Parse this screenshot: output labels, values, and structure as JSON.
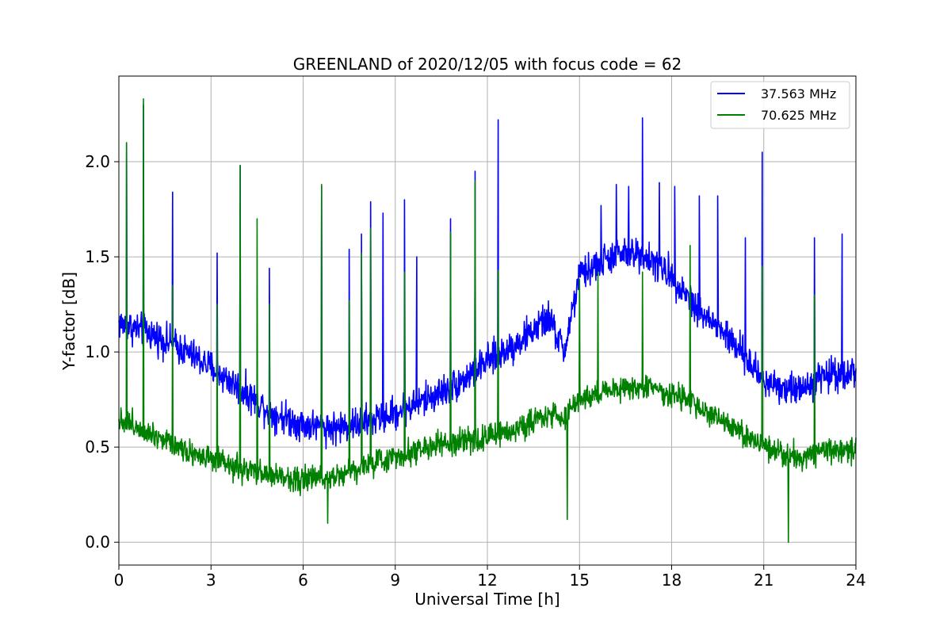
{
  "chart_data": {
    "type": "line",
    "title": "GREENLAND of 2020/12/05 with focus code = 62",
    "xlabel": "Universal Time [h]",
    "ylabel": "Y-factor [dB]",
    "xlim": [
      0,
      24
    ],
    "ylim": [
      -0.12,
      2.45
    ],
    "xticks": [
      0,
      3,
      6,
      9,
      12,
      15,
      18,
      21,
      24
    ],
    "yticks": [
      0.0,
      0.5,
      1.0,
      1.5,
      2.0
    ],
    "xtick_labels": [
      "0",
      "3",
      "6",
      "9",
      "12",
      "15",
      "18",
      "21",
      "24"
    ],
    "ytick_labels": [
      "0.0",
      "0.5",
      "1.0",
      "1.5",
      "2.0"
    ],
    "grid": true,
    "legend_position": "top-right",
    "series": [
      {
        "name": "37.563 MHz",
        "label": "37.563 MHz",
        "color": "#0000ff",
        "baseline": {
          "x": [
            0,
            1,
            2,
            3,
            4,
            5,
            6,
            7,
            8,
            9,
            10,
            11,
            12,
            13,
            14,
            14.5,
            15,
            16,
            17,
            18,
            19,
            20,
            21,
            22,
            23,
            24
          ],
          "y": [
            1.15,
            1.1,
            1.02,
            0.92,
            0.8,
            0.68,
            0.62,
            0.6,
            0.63,
            0.68,
            0.75,
            0.83,
            0.95,
            1.05,
            1.18,
            1.0,
            1.4,
            1.5,
            1.52,
            1.4,
            1.2,
            1.05,
            0.85,
            0.8,
            0.88,
            0.9
          ]
        },
        "noise_amplitude": 0.13,
        "spikes": [
          {
            "x": 0.25,
            "y": 2.1
          },
          {
            "x": 0.8,
            "y": 2.3
          },
          {
            "x": 1.75,
            "y": 1.84
          },
          {
            "x": 3.2,
            "y": 1.52
          },
          {
            "x": 3.95,
            "y": 1.98
          },
          {
            "x": 4.9,
            "y": 1.44
          },
          {
            "x": 6.6,
            "y": 1.87
          },
          {
            "x": 7.5,
            "y": 1.54
          },
          {
            "x": 7.9,
            "y": 1.62
          },
          {
            "x": 8.2,
            "y": 1.79
          },
          {
            "x": 8.6,
            "y": 1.73
          },
          {
            "x": 9.3,
            "y": 1.8
          },
          {
            "x": 9.7,
            "y": 1.5
          },
          {
            "x": 10.8,
            "y": 1.7
          },
          {
            "x": 11.6,
            "y": 1.95
          },
          {
            "x": 12.35,
            "y": 2.22
          },
          {
            "x": 15.7,
            "y": 1.77
          },
          {
            "x": 16.2,
            "y": 1.88
          },
          {
            "x": 16.6,
            "y": 1.87
          },
          {
            "x": 17.05,
            "y": 2.23
          },
          {
            "x": 17.6,
            "y": 1.89
          },
          {
            "x": 18.1,
            "y": 1.87
          },
          {
            "x": 18.9,
            "y": 1.82
          },
          {
            "x": 19.5,
            "y": 1.82
          },
          {
            "x": 20.4,
            "y": 1.6
          },
          {
            "x": 20.95,
            "y": 2.05
          },
          {
            "x": 22.65,
            "y": 1.6
          },
          {
            "x": 23.55,
            "y": 1.62
          }
        ]
      },
      {
        "name": "70.625 MHz",
        "label": "70.625 MHz",
        "color": "#008000",
        "baseline": {
          "x": [
            0,
            1,
            2,
            3,
            4,
            5,
            6,
            7,
            8,
            9,
            10,
            11,
            12,
            13,
            14,
            14.5,
            15,
            16,
            17,
            18,
            19,
            20,
            21,
            22,
            23,
            24
          ],
          "y": [
            0.65,
            0.58,
            0.5,
            0.43,
            0.38,
            0.35,
            0.33,
            0.35,
            0.4,
            0.45,
            0.5,
            0.52,
            0.55,
            0.6,
            0.68,
            0.65,
            0.75,
            0.8,
            0.82,
            0.78,
            0.7,
            0.6,
            0.5,
            0.45,
            0.47,
            0.5
          ]
        },
        "noise_amplitude": 0.1,
        "spikes": [
          {
            "x": 0.25,
            "y": 2.1
          },
          {
            "x": 0.8,
            "y": 2.33
          },
          {
            "x": 1.75,
            "y": 1.35
          },
          {
            "x": 3.2,
            "y": 1.25
          },
          {
            "x": 3.95,
            "y": 1.98
          },
          {
            "x": 4.5,
            "y": 1.7
          },
          {
            "x": 4.9,
            "y": 1.25
          },
          {
            "x": 6.6,
            "y": 1.88
          },
          {
            "x": 7.5,
            "y": 1.27
          },
          {
            "x": 7.9,
            "y": 1.52
          },
          {
            "x": 8.2,
            "y": 1.65
          },
          {
            "x": 9.3,
            "y": 1.42
          },
          {
            "x": 10.8,
            "y": 1.63
          },
          {
            "x": 11.6,
            "y": 1.9
          },
          {
            "x": 12.35,
            "y": 1.43
          },
          {
            "x": 15.0,
            "y": 1.38
          },
          {
            "x": 15.6,
            "y": 1.42
          },
          {
            "x": 17.05,
            "y": 1.42
          },
          {
            "x": 18.6,
            "y": 1.56
          },
          {
            "x": 20.95,
            "y": 1.45
          },
          {
            "x": 22.65,
            "y": 1.3
          }
        ],
        "dips": [
          {
            "x": 14.6,
            "y": 0.12
          },
          {
            "x": 21.8,
            "y": 0.0
          },
          {
            "x": 6.8,
            "y": 0.1
          }
        ]
      }
    ]
  }
}
